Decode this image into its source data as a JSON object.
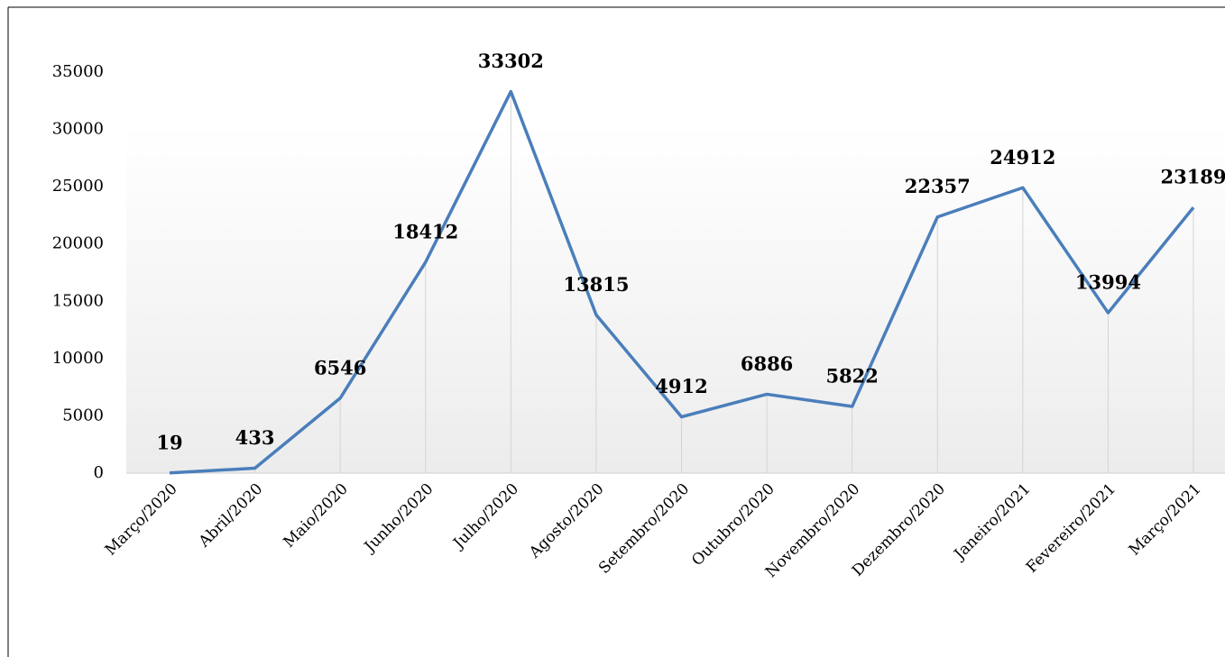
{
  "chart_data": {
    "type": "line",
    "categories": [
      "Março/2020",
      "Abril/2020",
      "Maio/2020",
      "Junho/2020",
      "Julho/2020",
      "Agosto/2020",
      "Setembro/2020",
      "Outubro/2020",
      "Novembro/2020",
      "Dezembro/2020",
      "Janeiro/2021",
      "Fevereiro/2021",
      "Março/2021"
    ],
    "values": [
      19,
      433,
      6546,
      18412,
      33302,
      13815,
      4912,
      6886,
      5822,
      22357,
      24912,
      13994,
      23189
    ],
    "color": "#4a7ebb",
    "ylim": [
      0,
      35000
    ],
    "yticks": [
      0,
      5000,
      10000,
      15000,
      20000,
      25000,
      30000,
      35000
    ]
  }
}
